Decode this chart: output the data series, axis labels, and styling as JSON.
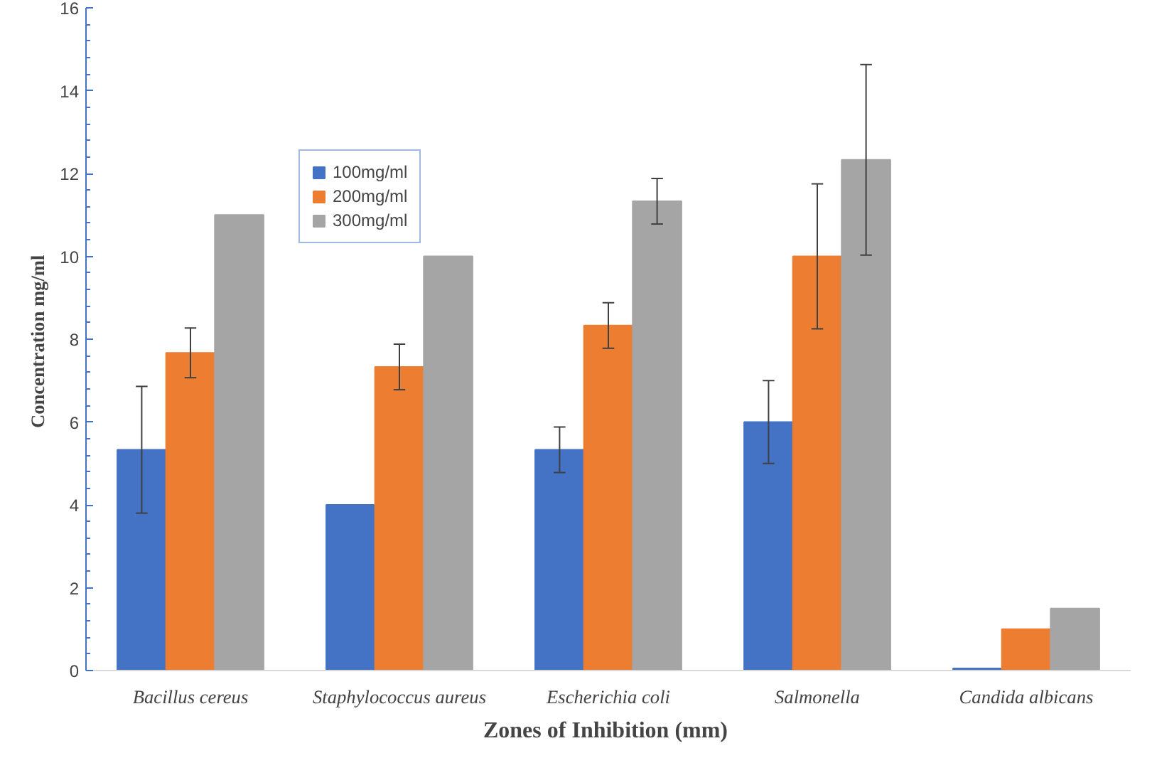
{
  "chart_data": {
    "type": "bar",
    "xlabel": "Zones of Inhibition  (mm)",
    "ylabel": "Concentration  mg/ml",
    "categories": [
      "Bacillus cereus",
      "Staphylococcus aureus",
      "Escherichia coli",
      "Salmonella",
      "Candida albicans"
    ],
    "series": [
      {
        "name": "100mg/ml",
        "color": "#4472c4",
        "values": [
          5.33,
          4,
          5.33,
          6,
          0.05
        ],
        "errors": [
          1.53,
          null,
          0.55,
          1,
          null
        ]
      },
      {
        "name": "200mg/ml",
        "color": "#ed7d31",
        "values": [
          7.67,
          7.33,
          8.33,
          10,
          1
        ],
        "errors": [
          0.6,
          0.55,
          0.55,
          1.75,
          null
        ]
      },
      {
        "name": "300mg/ml",
        "color": "#a5a5a5",
        "values": [
          11,
          10,
          11.33,
          12.33,
          1.5
        ],
        "errors": [
          null,
          null,
          0.55,
          2.3,
          null
        ]
      }
    ],
    "ylim": [
      0,
      16
    ],
    "yticks": [
      0,
      2,
      4,
      6,
      8,
      10,
      12,
      14,
      16
    ],
    "grid": false,
    "legend": "top left"
  }
}
